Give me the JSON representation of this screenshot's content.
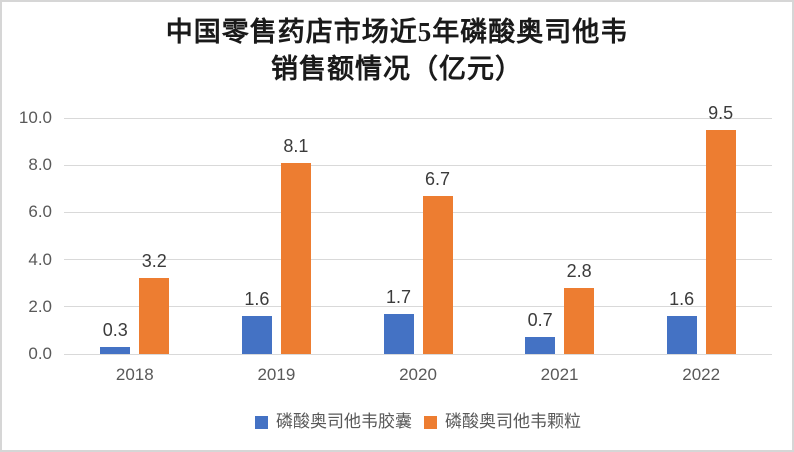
{
  "window": {
    "background": "#FFFFFF",
    "border_color": "#D6D6D6"
  },
  "title": {
    "line1": "中国零售药店市场近5年磷酸奥司他韦",
    "line2": "销售额情况（亿元）",
    "color": "#1A1A1A"
  },
  "chart_data": {
    "type": "bar",
    "title": "中国零售药店市场近5年磷酸奥司他韦销售额情况（亿元）",
    "categories": [
      "2018",
      "2019",
      "2020",
      "2021",
      "2022"
    ],
    "series": [
      {
        "name": "磷酸奥司他韦胶囊",
        "color": "#4472C4",
        "values": [
          0.3,
          1.6,
          1.7,
          0.7,
          1.6
        ],
        "labels": [
          "0.3",
          "1.6",
          "1.7",
          "0.7",
          "1.6"
        ]
      },
      {
        "name": "磷酸奥司他韦颗粒",
        "color": "#ED7D31",
        "values": [
          3.2,
          8.1,
          6.7,
          2.8,
          9.5
        ],
        "labels": [
          "3.2",
          "8.1",
          "6.7",
          "2.8",
          "9.5"
        ]
      }
    ],
    "ylim": [
      0,
      10
    ],
    "ytick_step": 2,
    "ytick_labels": [
      "0.0",
      "2.0",
      "4.0",
      "6.0",
      "8.0",
      "10.0"
    ],
    "grid": true,
    "legend_position": "bottom",
    "colors": {
      "gridline": "#D9D9D9",
      "axis_line": "#D9D9D9",
      "axis_label": "#595959",
      "data_label": "#3B3B3B"
    }
  }
}
